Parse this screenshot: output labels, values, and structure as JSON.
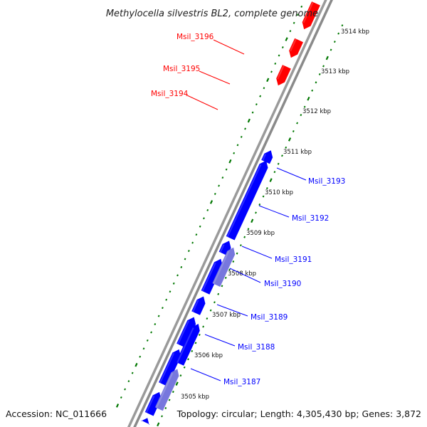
{
  "map": {
    "title": "Methylocella silvestris BL2, complete genome",
    "accession_label": "Accession: NC_011666",
    "summary_label": "Topology: circular; Length: 4,305,430 bp; Genes: 3,872",
    "colors": {
      "reverse_gene": "#ff0000",
      "forward_gene": "#0000ff",
      "forward_gene_alt": "#7777dd",
      "backbone": "#888888",
      "tick": "#007700"
    },
    "kbp_ticks": [
      "3514 kbp",
      "3513 kbp",
      "3512 kbp",
      "3511 kbp",
      "3510 kbp",
      "3509 kbp",
      "3508 kbp",
      "3507 kbp",
      "3506 kbp",
      "3505 kbp"
    ],
    "reverse_genes": [
      "Msil_3196",
      "Msil_3195",
      "Msil_3194"
    ],
    "forward_genes": [
      "Msil_3193",
      "Msil_3192",
      "Msil_3191",
      "Msil_3190",
      "Msil_3189",
      "Msil_3188",
      "Msil_3187"
    ]
  }
}
